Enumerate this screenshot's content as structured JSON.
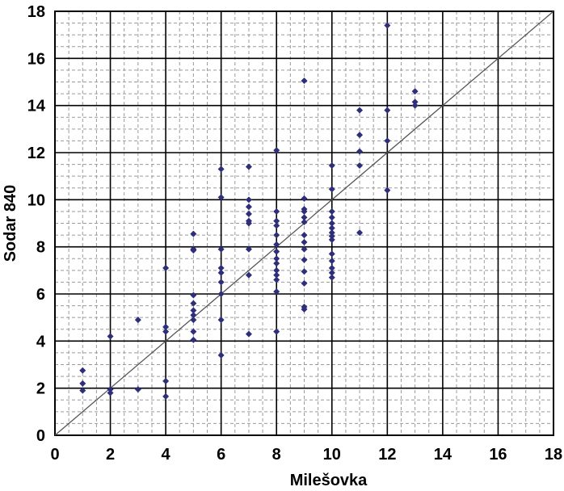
{
  "chart_data": {
    "type": "scatter",
    "title": "",
    "xlabel": "Milešovka",
    "ylabel": "Sodar 840",
    "xlim": [
      0,
      18
    ],
    "ylim": [
      0,
      18
    ],
    "xticks": [
      "0",
      "2",
      "4",
      "6",
      "8",
      "10",
      "12",
      "14",
      "16",
      "18"
    ],
    "yticks": [
      "0",
      "2",
      "4",
      "6",
      "8",
      "10",
      "12",
      "14",
      "16",
      "18"
    ],
    "grid": true,
    "minor_grid": true,
    "reference_line": {
      "kind": "identity",
      "from": [
        0,
        0
      ],
      "to": [
        18,
        18
      ]
    },
    "colors": {
      "marker": "#2e2e7a",
      "line": "#555555",
      "major_grid": "#000000",
      "minor_grid": "#9a9a9a"
    },
    "series": [
      {
        "points": [
          [
            1,
            2.75
          ],
          [
            1,
            2.2
          ],
          [
            1,
            1.9
          ],
          [
            2,
            4.2
          ],
          [
            2,
            1.95
          ],
          [
            2,
            1.8
          ],
          [
            3,
            4.9
          ],
          [
            3,
            1.95
          ],
          [
            4,
            7.1
          ],
          [
            4,
            4.6
          ],
          [
            4,
            4.4
          ],
          [
            4,
            2.3
          ],
          [
            4,
            1.65
          ],
          [
            5,
            8.55
          ],
          [
            5,
            7.9
          ],
          [
            5,
            7.85
          ],
          [
            5,
            5.95
          ],
          [
            5,
            5.6
          ],
          [
            5,
            5.3
          ],
          [
            5,
            5.1
          ],
          [
            5,
            4.9
          ],
          [
            5,
            4.4
          ],
          [
            5,
            4.05
          ],
          [
            6,
            11.3
          ],
          [
            6,
            10.1
          ],
          [
            6,
            7.9
          ],
          [
            6,
            7.1
          ],
          [
            6,
            6.9
          ],
          [
            6,
            6.5
          ],
          [
            6,
            6.0
          ],
          [
            6,
            4.9
          ],
          [
            6,
            3.4
          ],
          [
            7,
            11.4
          ],
          [
            7,
            10.0
          ],
          [
            7,
            9.7
          ],
          [
            7,
            9.4
          ],
          [
            7,
            9.1
          ],
          [
            7,
            9.0
          ],
          [
            7,
            7.9
          ],
          [
            7,
            6.8
          ],
          [
            7,
            4.3
          ],
          [
            8,
            12.1
          ],
          [
            8,
            9.5
          ],
          [
            8,
            9.1
          ],
          [
            8,
            8.9
          ],
          [
            8,
            8.5
          ],
          [
            8,
            8.1
          ],
          [
            8,
            7.8
          ],
          [
            8,
            7.5
          ],
          [
            8,
            7.3
          ],
          [
            8,
            7.0
          ],
          [
            8,
            6.8
          ],
          [
            8,
            6.6
          ],
          [
            8,
            6.1
          ],
          [
            8,
            4.4
          ],
          [
            9,
            15.05
          ],
          [
            9,
            10.05
          ],
          [
            9,
            9.6
          ],
          [
            9,
            9.5
          ],
          [
            9,
            9.25
          ],
          [
            9,
            9.05
          ],
          [
            9,
            8.5
          ],
          [
            9,
            8.2
          ],
          [
            9,
            7.9
          ],
          [
            9,
            7.45
          ],
          [
            9,
            6.95
          ],
          [
            9,
            6.45
          ],
          [
            9,
            5.45
          ],
          [
            9,
            5.35
          ],
          [
            10,
            11.45
          ],
          [
            10,
            10.45
          ],
          [
            10,
            9.5
          ],
          [
            10,
            9.25
          ],
          [
            10,
            9.0
          ],
          [
            10,
            8.8
          ],
          [
            10,
            8.6
          ],
          [
            10,
            8.45
          ],
          [
            10,
            8.3
          ],
          [
            10,
            7.7
          ],
          [
            10,
            7.4
          ],
          [
            10,
            7.1
          ],
          [
            10,
            6.9
          ],
          [
            10,
            6.7
          ],
          [
            11,
            13.8
          ],
          [
            11,
            12.75
          ],
          [
            11,
            12.05
          ],
          [
            11,
            11.45
          ],
          [
            11,
            8.6
          ],
          [
            12,
            17.4
          ],
          [
            12,
            13.8
          ],
          [
            12,
            12.5
          ],
          [
            12,
            10.4
          ],
          [
            13,
            14.6
          ],
          [
            13,
            14.15
          ],
          [
            13,
            14.0
          ]
        ]
      }
    ]
  }
}
